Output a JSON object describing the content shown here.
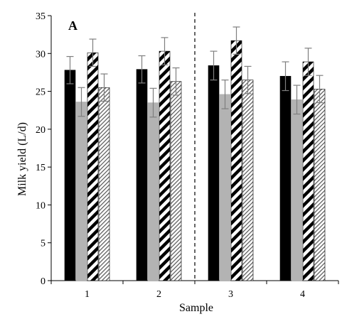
{
  "chart_data": {
    "type": "bar",
    "panel_label": "A",
    "xlabel": "Sample",
    "ylabel": "Milk yield (L/d)",
    "ylim": [
      0,
      35
    ],
    "yticks": [
      0,
      5,
      10,
      15,
      20,
      25,
      30,
      35
    ],
    "categories": [
      "1",
      "2",
      "3",
      "4"
    ],
    "grid": false,
    "legend": "none",
    "divider_after_category": "2",
    "series": [
      {
        "fill": "solid-black",
        "color": "#000000",
        "values": [
          27.8,
          27.9,
          28.4,
          27.0
        ],
        "errors": [
          1.8,
          1.8,
          1.9,
          1.9
        ]
      },
      {
        "fill": "solid-gray",
        "color": "#b3b3b3",
        "values": [
          23.6,
          23.5,
          24.6,
          23.9
        ],
        "errors": [
          1.9,
          1.9,
          1.9,
          1.9
        ]
      },
      {
        "fill": "wide-diagonal-hatch",
        "color": "#000000",
        "values": [
          30.1,
          30.3,
          31.7,
          28.9
        ],
        "errors": [
          1.8,
          1.8,
          1.8,
          1.8
        ]
      },
      {
        "fill": "fine-diagonal-hatch",
        "color": "#555555",
        "values": [
          25.5,
          26.3,
          26.5,
          25.3
        ],
        "errors": [
          1.8,
          1.8,
          1.8,
          1.8
        ]
      }
    ]
  }
}
